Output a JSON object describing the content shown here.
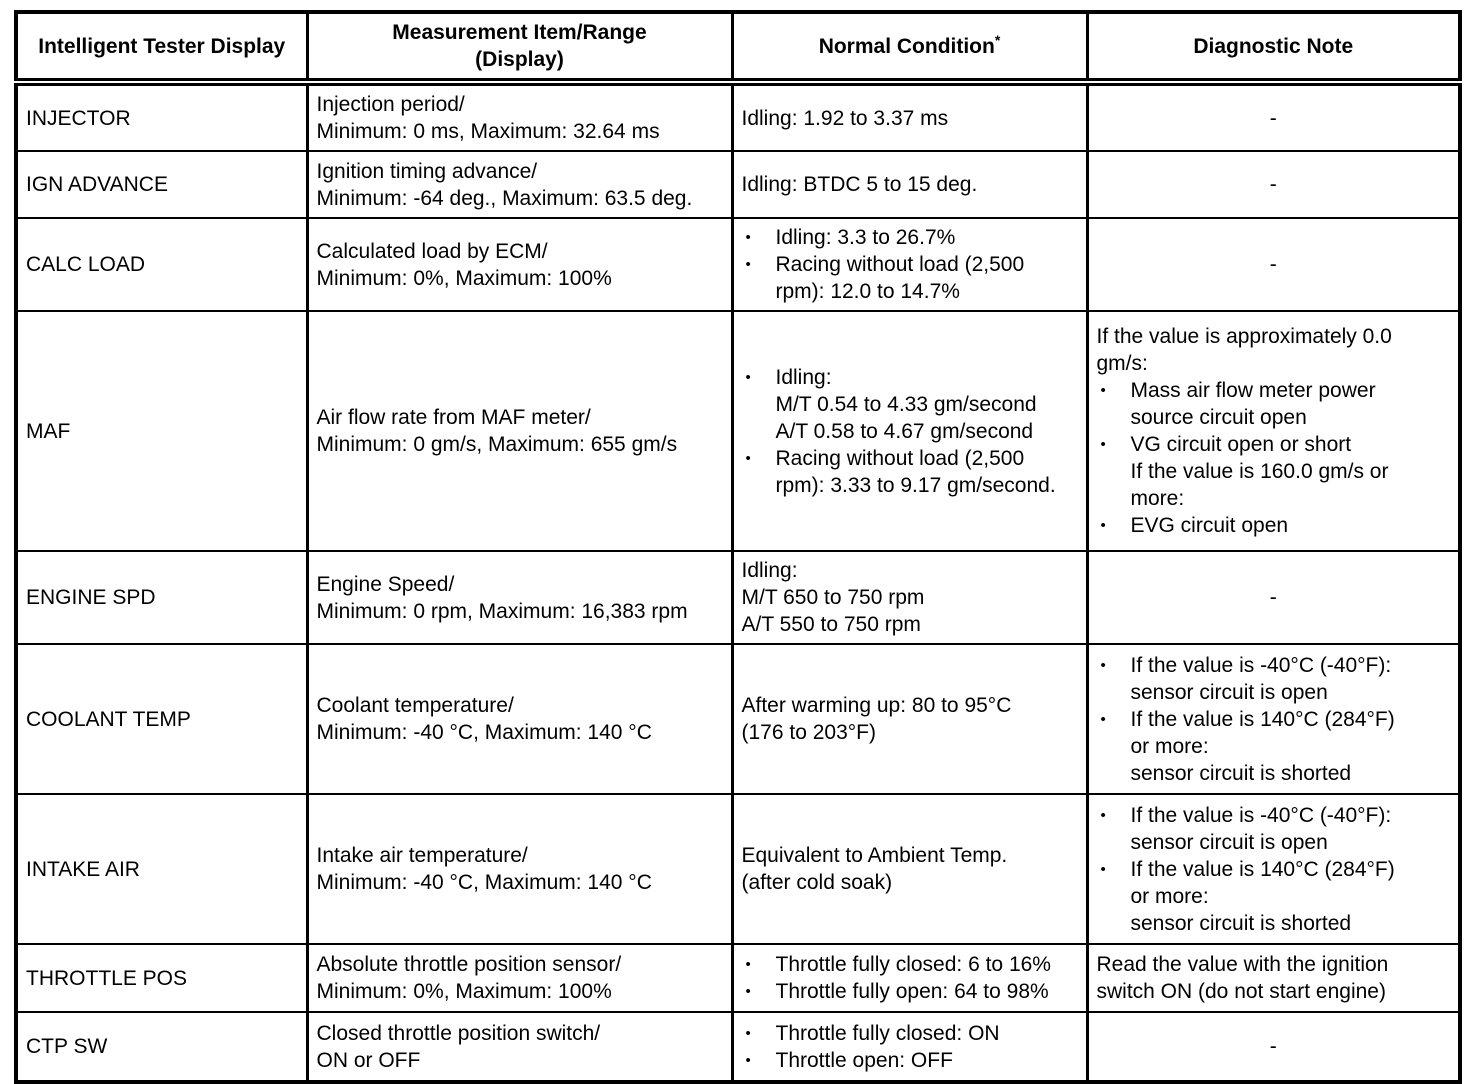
{
  "header": {
    "col1": "Intelligent Tester Display",
    "col2_line1": "Measurement Item/Range",
    "col2_line2": "(Display)",
    "col3": "Normal Condition",
    "col3_sup": "*",
    "col4": "Diagnostic Note"
  },
  "dash": "-",
  "bullet_char": "•",
  "rows": [
    {
      "display": "INJECTOR",
      "measurement": [
        "Injection period/",
        "Minimum: 0 ms, Maximum: 32.64 ms"
      ],
      "normal": [
        {
          "lines": [
            "Idling: 1.92 to 3.37 ms"
          ]
        }
      ],
      "note": [
        {
          "dash": true
        }
      ]
    },
    {
      "display": "IGN ADVANCE",
      "measurement": [
        "Ignition timing advance/",
        "Minimum: -64 deg., Maximum: 63.5 deg."
      ],
      "normal": [
        {
          "lines": [
            "Idling: BTDC 5 to 15 deg."
          ]
        }
      ],
      "note": [
        {
          "dash": true
        }
      ]
    },
    {
      "display": "CALC LOAD",
      "measurement": [
        "Calculated load by ECM/",
        "Minimum: 0%, Maximum: 100%"
      ],
      "normal": [
        {
          "bullet": true,
          "lines": [
            "Idling: 3.3 to 26.7%"
          ]
        },
        {
          "bullet": true,
          "lines": [
            "Racing without load (2,500",
            "rpm): 12.0 to 14.7%"
          ]
        }
      ],
      "note": [
        {
          "dash": true
        }
      ]
    },
    {
      "display": "MAF",
      "measurement": [
        "Air flow rate from MAF meter/",
        "Minimum: 0 gm/s, Maximum: 655 gm/s"
      ],
      "normal": [
        {
          "bullet": true,
          "lines": [
            "Idling:",
            "M/T 0.54 to 4.33 gm/second",
            "A/T 0.58 to 4.67 gm/second"
          ]
        },
        {
          "bullet": true,
          "lines": [
            "Racing without load (2,500",
            "rpm): 3.33 to 9.17 gm/second."
          ]
        }
      ],
      "note": [
        {
          "lines": [
            "If the value is approximately 0.0",
            "gm/s:"
          ]
        },
        {
          "bullet": true,
          "lines": [
            "Mass air flow meter power",
            "source circuit open"
          ]
        },
        {
          "bullet": true,
          "lines": [
            "VG circuit open or short",
            "If the value is 160.0 gm/s or",
            "more:"
          ]
        },
        {
          "bullet": true,
          "lines": [
            "EVG circuit open"
          ]
        }
      ]
    },
    {
      "display": "ENGINE SPD",
      "measurement": [
        "Engine Speed/",
        "Minimum: 0 rpm, Maximum: 16,383 rpm"
      ],
      "normal": [
        {
          "lines": [
            "Idling:",
            "M/T 650 to 750 rpm",
            "A/T 550 to 750 rpm"
          ]
        }
      ],
      "note": [
        {
          "dash": true
        }
      ]
    },
    {
      "display": "COOLANT TEMP",
      "measurement": [
        "Coolant temperature/",
        "Minimum: -40 °C, Maximum: 140 °C"
      ],
      "normal": [
        {
          "lines": [
            "After warming up: 80 to 95°C",
            "(176 to 203°F)"
          ]
        }
      ],
      "note": [
        {
          "bullet": true,
          "lines": [
            "If the value is -40°C (-40°F):",
            "sensor circuit is open"
          ]
        },
        {
          "bullet": true,
          "lines": [
            "If the value is 140°C (284°F)",
            "or more:",
            "sensor circuit is shorted"
          ]
        }
      ]
    },
    {
      "display": "INTAKE AIR",
      "measurement": [
        "Intake air temperature/",
        "Minimum: -40 °C, Maximum: 140 °C"
      ],
      "normal": [
        {
          "lines": [
            "Equivalent to Ambient Temp.",
            "(after cold soak)"
          ]
        }
      ],
      "note": [
        {
          "bullet": true,
          "lines": [
            "If the value is -40°C (-40°F):",
            "sensor circuit is open"
          ]
        },
        {
          "bullet": true,
          "lines": [
            "If the value is 140°C (284°F)",
            "or more:",
            "sensor circuit is shorted"
          ]
        }
      ]
    },
    {
      "display": "THROTTLE POS",
      "measurement": [
        "Absolute throttle position sensor/",
        "Minimum: 0%, Maximum: 100%"
      ],
      "normal": [
        {
          "bullet": true,
          "lines": [
            "Throttle fully closed: 6 to 16%"
          ]
        },
        {
          "bullet": true,
          "lines": [
            "Throttle fully open: 64 to 98%"
          ]
        }
      ],
      "note": [
        {
          "lines": [
            "Read the value with the ignition",
            "switch ON (do not start engine)"
          ]
        }
      ]
    },
    {
      "display": "CTP SW",
      "measurement": [
        "Closed throttle position switch/",
        "ON or OFF"
      ],
      "normal": [
        {
          "bullet": true,
          "lines": [
            "Throttle fully closed: ON"
          ]
        },
        {
          "bullet": true,
          "lines": [
            "Throttle open: OFF"
          ]
        }
      ],
      "note": [
        {
          "dash": true
        }
      ]
    }
  ]
}
